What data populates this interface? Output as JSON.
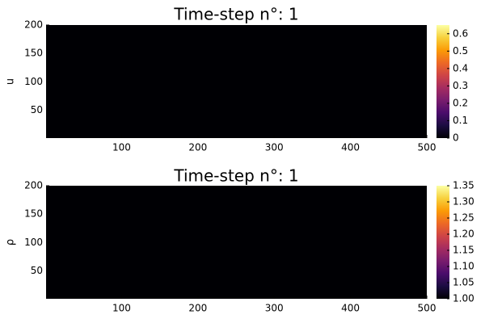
{
  "chart_data": [
    {
      "type": "heatmap",
      "title": "Time-step n°: 1",
      "ylabel": "u",
      "xlim": [
        1,
        500
      ],
      "ylim": [
        1,
        200
      ],
      "x_ticks": [
        100,
        200,
        300,
        400,
        500
      ],
      "y_ticks": [
        50,
        100,
        150,
        200
      ],
      "colorbar": {
        "range": [
          0,
          0.65
        ],
        "ticks": [
          0,
          0.1,
          0.2,
          0.3,
          0.4,
          0.5,
          0.6
        ],
        "tick_labels": [
          "0",
          "0.1",
          "0.2",
          "0.3",
          "0.4",
          "0.5",
          "0.6"
        ],
        "colormap": "inferno"
      },
      "field_value": 0
    },
    {
      "type": "heatmap",
      "title": "Time-step n°: 1",
      "ylabel": "ρ",
      "xlim": [
        1,
        500
      ],
      "ylim": [
        1,
        200
      ],
      "x_ticks": [
        100,
        200,
        300,
        400,
        500
      ],
      "y_ticks": [
        50,
        100,
        150,
        200
      ],
      "colorbar": {
        "range": [
          1.0,
          1.35
        ],
        "ticks": [
          1.0,
          1.05,
          1.1,
          1.15,
          1.2,
          1.25,
          1.3,
          1.35
        ],
        "tick_labels": [
          "1.00",
          "1.05",
          "1.10",
          "1.15",
          "1.20",
          "1.25",
          "1.30",
          "1.35"
        ],
        "colormap": "inferno"
      },
      "field_value": 1.0
    }
  ],
  "colors": {
    "inferno": [
      "#000004",
      "#1b0c41",
      "#4a0c6b",
      "#781c6d",
      "#a52c60",
      "#cf4446",
      "#ed6925",
      "#fb9b06",
      "#f7d13d",
      "#fcffa4"
    ]
  }
}
